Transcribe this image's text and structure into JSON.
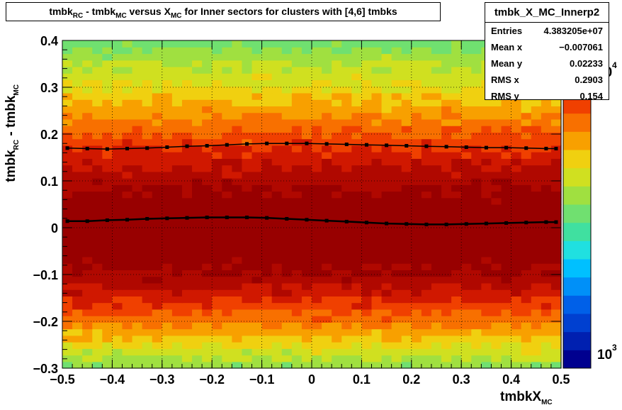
{
  "title": {
    "parts": [
      "tmbk",
      "RC",
      " - tmbk",
      "MC",
      " versus X",
      "MC",
      " for Inner sectors for clusters with [4,6] tmbks"
    ]
  },
  "stats_box": {
    "name": "tmbk_X_MC_Innerp2",
    "rows": [
      {
        "label": "Entries",
        "value": "4.383205e+07"
      },
      {
        "label": "Mean x",
        "value": "−0.007061"
      },
      {
        "label": "Mean y",
        "value": "0.02233"
      },
      {
        "label": "RMS x",
        "value": "0.2903"
      },
      {
        "label": "RMS y",
        "value": "0.154"
      }
    ]
  },
  "colors": {
    "palette": [
      "#00008f",
      "#0020b0",
      "#0040d0",
      "#0060e8",
      "#0090f8",
      "#00c0ff",
      "#20e0e0",
      "#40e0a0",
      "#70e070",
      "#a0e040",
      "#d0e020",
      "#f0d010",
      "#f8a000",
      "#f87000",
      "#f04000",
      "#d01800",
      "#b00800",
      "#980000"
    ],
    "profile": "#000000",
    "frame": "#000000"
  },
  "chart_data": {
    "type": "heatmap",
    "xlabel_parts": [
      "tmbkX",
      "MC"
    ],
    "ylabel_parts": [
      "tmbk",
      "RC",
      " - tmbk",
      "MC"
    ],
    "xlim": [
      -0.5,
      0.5
    ],
    "ylim": [
      -0.3,
      0.4
    ],
    "x_ticks": [
      -0.5,
      -0.4,
      -0.3,
      -0.2,
      -0.1,
      0,
      0.1,
      0.2,
      0.3,
      0.4,
      0.5
    ],
    "x_tick_labels": [
      "−0.5",
      "−0.4",
      "−0.3",
      "−0.2",
      "−0.1",
      "0",
      "0.1",
      "0.2",
      "0.3",
      "0.4",
      "0.5"
    ],
    "y_ticks": [
      -0.3,
      -0.2,
      -0.1,
      0,
      0.1,
      0.2,
      0.3,
      0.4
    ],
    "y_tick_labels": [
      "−0.3",
      "−0.2",
      "−0.1",
      "0",
      "0.1",
      "0.2",
      "0.3",
      "0.4"
    ],
    "colorbar": {
      "scale": "log",
      "labels": [
        {
          "base": "10",
          "exp": "3"
        },
        {
          "base": "10",
          "exp": "4"
        }
      ]
    },
    "z_profile": [
      [
        -0.3,
        0.5
      ],
      [
        -0.25,
        0.62
      ],
      [
        -0.2,
        0.74
      ],
      [
        -0.15,
        0.85
      ],
      [
        -0.1,
        0.94
      ],
      [
        -0.05,
        0.99
      ],
      [
        0.0,
        1.0
      ],
      [
        0.05,
        0.98
      ],
      [
        0.1,
        0.93
      ],
      [
        0.15,
        0.86
      ],
      [
        0.2,
        0.78
      ],
      [
        0.25,
        0.7
      ],
      [
        0.3,
        0.62
      ],
      [
        0.35,
        0.55
      ],
      [
        0.4,
        0.47
      ]
    ],
    "grid": true,
    "series": [
      {
        "x": [
          -0.49,
          -0.45,
          -0.41,
          -0.37,
          -0.33,
          -0.29,
          -0.25,
          -0.21,
          -0.17,
          -0.13,
          -0.09,
          -0.05,
          -0.01,
          0.03,
          0.07,
          0.11,
          0.15,
          0.19,
          0.23,
          0.27,
          0.31,
          0.35,
          0.39,
          0.43,
          0.47,
          0.49
        ],
        "y": [
          0.17,
          0.169,
          0.168,
          0.169,
          0.17,
          0.172,
          0.174,
          0.175,
          0.177,
          0.179,
          0.18,
          0.18,
          0.18,
          0.179,
          0.178,
          0.177,
          0.176,
          0.175,
          0.174,
          0.173,
          0.172,
          0.171,
          0.171,
          0.17,
          0.169,
          0.169
        ]
      },
      {
        "x": [
          -0.49,
          -0.45,
          -0.41,
          -0.37,
          -0.33,
          -0.29,
          -0.25,
          -0.21,
          -0.17,
          -0.13,
          -0.09,
          -0.05,
          -0.01,
          0.03,
          0.07,
          0.11,
          0.15,
          0.19,
          0.23,
          0.27,
          0.31,
          0.35,
          0.39,
          0.43,
          0.47,
          0.49
        ],
        "y": [
          0.014,
          0.014,
          0.016,
          0.017,
          0.019,
          0.02,
          0.021,
          0.022,
          0.022,
          0.022,
          0.021,
          0.019,
          0.017,
          0.015,
          0.013,
          0.011,
          0.009,
          0.008,
          0.007,
          0.007,
          0.008,
          0.009,
          0.01,
          0.011,
          0.012,
          0.012
        ]
      }
    ]
  }
}
